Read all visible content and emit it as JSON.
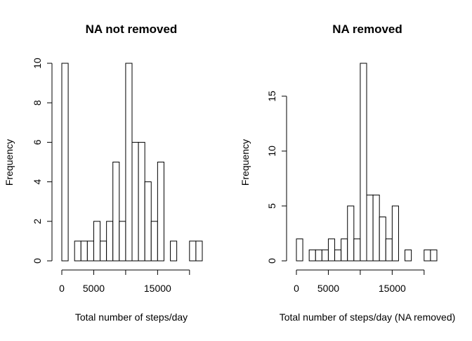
{
  "chart_data": [
    {
      "type": "bar",
      "title": "NA not removed",
      "xlabel": "Total number of steps/day",
      "ylabel": "Frequency",
      "bin_width": 1000,
      "x_start": 0,
      "values": [
        10,
        0,
        1,
        1,
        1,
        2,
        1,
        2,
        5,
        2,
        10,
        6,
        6,
        4,
        2,
        5,
        0,
        1,
        0,
        0,
        1,
        1
      ],
      "xlim": [
        0,
        22000
      ],
      "ylim": [
        0,
        10
      ],
      "x_ticks": [
        0,
        5000,
        15000
      ],
      "x_tick_labels": [
        "0",
        "5000",
        "15000"
      ],
      "x_axis_extent": [
        0,
        20000
      ],
      "y_ticks": [
        0,
        2,
        4,
        6,
        8,
        10
      ],
      "y_tick_labels": [
        "0",
        "2",
        "4",
        "6",
        "8",
        "10"
      ]
    },
    {
      "type": "bar",
      "title": "NA removed",
      "xlabel": "Total number of steps/day (NA removed)",
      "ylabel": "Frequency",
      "bin_width": 1000,
      "x_start": 0,
      "values": [
        2,
        0,
        1,
        1,
        1,
        2,
        1,
        2,
        5,
        2,
        18,
        6,
        6,
        4,
        2,
        5,
        0,
        1,
        0,
        0,
        1,
        1
      ],
      "xlim": [
        0,
        22000
      ],
      "ylim": [
        0,
        18
      ],
      "x_ticks": [
        0,
        5000,
        15000
      ],
      "x_tick_labels": [
        "0",
        "5000",
        "15000"
      ],
      "x_axis_extent": [
        0,
        20000
      ],
      "y_ticks": [
        0,
        5,
        10,
        15
      ],
      "y_tick_labels": [
        "0",
        "5",
        "10",
        "15"
      ]
    }
  ]
}
